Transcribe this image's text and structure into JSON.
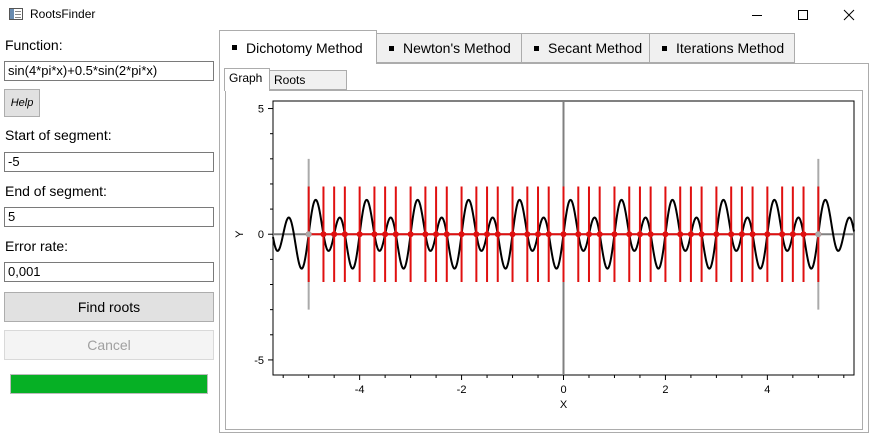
{
  "window": {
    "title": "RootsFinder"
  },
  "left": {
    "function_label": "Function:",
    "function_value": "sin(4*pi*x)+0.5*sin(2*pi*x)",
    "help_label": "Help",
    "start_label": "Start of segment:",
    "start_value": "-5",
    "end_label": "End of segment:",
    "end_value": "5",
    "error_label": "Error rate:",
    "error_value": "0,001",
    "find_label": "Find roots",
    "cancel_label": "Cancel",
    "progress_percent": 100,
    "progress_color": "#06b025"
  },
  "tabs": [
    "Dichotomy Method",
    "Newton's Method",
    "Secant Method",
    "Iterations Method"
  ],
  "active_tab": 0,
  "subtabs": [
    "Graph",
    "Roots details"
  ],
  "active_subtab": 0,
  "chart_data": {
    "type": "line",
    "function": "sin(4*pi*x)+0.5*sin(2*pi*x)",
    "xlabel": "X",
    "ylabel": "Y",
    "xlim": [
      -5.7,
      5.7
    ],
    "ylim": [
      -5.6,
      5.3
    ],
    "x_ticks": [
      -4,
      -2,
      0,
      2,
      4
    ],
    "y_ticks": [
      -5,
      0,
      5
    ],
    "segment": [
      -5,
      5
    ],
    "roots_count": 41,
    "series": [
      {
        "name": "function",
        "color": "#000000"
      },
      {
        "name": "roots",
        "color": "#e01010"
      },
      {
        "name": "segment bounds",
        "color": "#aaaaaa"
      }
    ]
  }
}
